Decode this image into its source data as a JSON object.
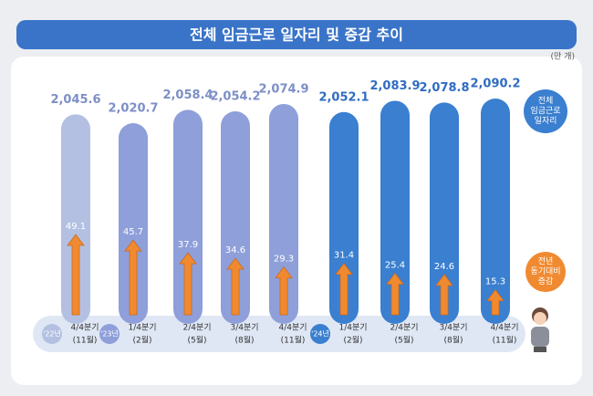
{
  "chart_data": {
    "type": "bar",
    "title": "전체 임금근로 일자리 및 증감 추이",
    "unit": "(만 개)",
    "categories": [
      "4/4분기",
      "1/4분기",
      "2/4분기",
      "3/4분기",
      "4/4분기",
      "1/4분기",
      "2/4분기",
      "3/4분기",
      "4/4분기"
    ],
    "months": [
      "(11월)",
      "(2월)",
      "(5월)",
      "(8월)",
      "(11월)",
      "(2월)",
      "(5월)",
      "(8월)",
      "(11월)"
    ],
    "year_badges": [
      "'22년",
      "'23년",
      null,
      null,
      null,
      "'24년",
      null,
      null,
      null
    ],
    "series": [
      {
        "name": "전체\n임금근로\n일자리",
        "color": "#3a7fd0",
        "colors": [
          "#b3c0e2",
          "#8e9fd9",
          "#8e9fd9",
          "#8e9fd9",
          "#8e9fd9",
          "#3a7fd0",
          "#3a7fd0",
          "#3a7fd0",
          "#3a7fd0"
        ],
        "values": [
          2045.6,
          2020.7,
          2058.4,
          2054.2,
          2074.9,
          2052.1,
          2083.9,
          2078.8,
          2090.2
        ],
        "value_labels": [
          "2,045.6",
          "2,020.7",
          "2,058.4",
          "2,054.2",
          "2,074.9",
          "2,052.1",
          "2,083.9",
          "2,078.8",
          "2,090.2"
        ]
      },
      {
        "name": "전년\n동기대비\n증감",
        "color": "#f08a30",
        "values": [
          49.1,
          45.7,
          37.9,
          34.6,
          29.3,
          31.4,
          25.4,
          24.6,
          15.3
        ]
      }
    ]
  }
}
